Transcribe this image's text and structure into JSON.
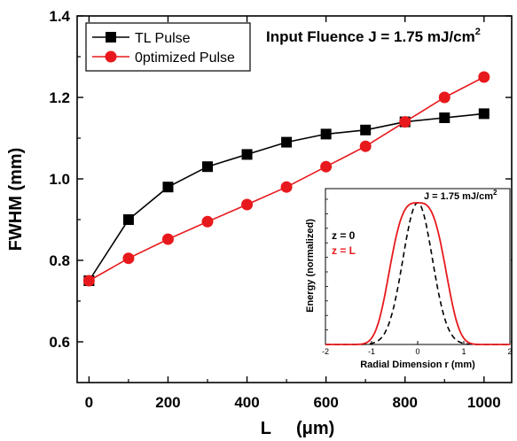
{
  "chart_data": [
    {
      "type": "line",
      "xlabel": "L",
      "xlabel_unit": "(μm)",
      "ylabel": "FWHM (mm)",
      "xlim": [
        -30,
        1070
      ],
      "ylim": [
        0.5,
        1.4
      ],
      "xticks": [
        0,
        200,
        400,
        600,
        800,
        1000
      ],
      "yticks": [
        0.6,
        0.8,
        1.0,
        1.2,
        1.4
      ],
      "xtick_labels": [
        "0",
        "200",
        "400",
        "600",
        "800",
        "1000"
      ],
      "ytick_labels": [
        "0.6",
        "0.8",
        "1.0",
        "1.2",
        "1.4"
      ],
      "legend_position": "top-left",
      "annotation": "Input Fluence J = 1.75 mJ/cm",
      "annotation_sup": "2",
      "series": [
        {
          "name": "TL Pulse",
          "color": "#000000",
          "marker": "square",
          "x": [
            0,
            100,
            200,
            300,
            400,
            500,
            600,
            700,
            800,
            900,
            1000
          ],
          "y": [
            0.75,
            0.9,
            0.98,
            1.03,
            1.06,
            1.09,
            1.11,
            1.12,
            1.14,
            1.15,
            1.16
          ]
        },
        {
          "name": "0ptimized Pulse",
          "color": "#e8191c",
          "marker": "circle",
          "x": [
            0,
            100,
            200,
            300,
            400,
            500,
            600,
            700,
            800,
            900,
            1000
          ],
          "y": [
            0.75,
            0.805,
            0.852,
            0.895,
            0.937,
            0.98,
            1.03,
            1.08,
            1.14,
            1.2,
            1.25
          ]
        }
      ]
    },
    {
      "type": "line",
      "inset": true,
      "xlabel": "Radial Dimension r (mm)",
      "ylabel": "Energy (normalized)",
      "xlim": [
        -2,
        2
      ],
      "ylim": [
        0,
        1.1
      ],
      "xticks": [
        -2,
        -1,
        0,
        1,
        2
      ],
      "xtick_labels": [
        "-2",
        "-1",
        "0",
        "1",
        "2"
      ],
      "annotation": "J = 1.75 mJ/cm",
      "annotation_sup": "2",
      "series": [
        {
          "name": "z = 0",
          "color": "#000000",
          "style": "dashed",
          "gaussian": {
            "amplitude": 1.0,
            "center": 0.0,
            "fwhm": 0.75
          }
        },
        {
          "name": "z = L",
          "color": "#e8191c",
          "style": "solid",
          "super_gaussian": {
            "amplitude": 1.0,
            "center": 0.0,
            "fwhm": 1.25,
            "order": 1.6
          }
        }
      ]
    }
  ],
  "legend": {
    "tl_label": "TL Pulse",
    "opt_label": "0ptimized Pulse"
  },
  "inset_legend": {
    "z0": "z = 0",
    "zl": "z = L"
  },
  "colors": {
    "black": "#000000",
    "red": "#e8191c"
  }
}
